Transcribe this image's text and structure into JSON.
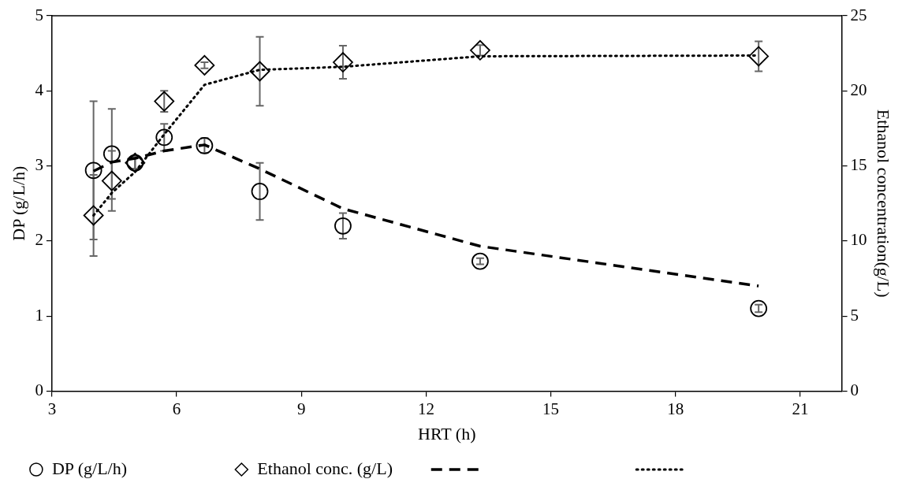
{
  "chart_data": {
    "type": "scatter",
    "xlabel": "HRT (h)",
    "ylabel": "DP (g/L/h)",
    "y2label": "Ethanol concentration(g/L)",
    "xlim": [
      3,
      22
    ],
    "xticks": [
      3,
      6,
      9,
      12,
      15,
      18,
      21
    ],
    "ylim": [
      0,
      5
    ],
    "yticks": [
      0,
      1,
      2,
      3,
      4,
      5
    ],
    "y2lim": [
      0,
      25
    ],
    "y2ticks": [
      0,
      5,
      10,
      15,
      20,
      25
    ],
    "grid": false,
    "legend": "bottom",
    "series": [
      {
        "name": "DP (g/L/h)",
        "type": "scatter",
        "marker": "circle",
        "color": "#000000",
        "x": [
          4,
          4.44,
          5,
          5.7,
          6.67,
          8,
          10,
          13.3,
          20
        ],
        "values": [
          2.94,
          3.16,
          3.04,
          3.38,
          3.27,
          2.66,
          2.2,
          1.73,
          1.1
        ],
        "errors": [
          0.92,
          0.6,
          0.08,
          0.18,
          0.1,
          0.38,
          0.17,
          0.04,
          0.05
        ]
      },
      {
        "name": "Ethanol conc. (g/L)",
        "type": "scatter",
        "marker": "diamond",
        "axis": "y2",
        "color": "#000000",
        "x": [
          4,
          4.44,
          5,
          5.7,
          6.67,
          8,
          10,
          13.3,
          20
        ],
        "values": [
          11.7,
          14.0,
          15.2,
          19.3,
          21.7,
          21.3,
          21.9,
          22.7,
          22.3
        ],
        "errors": [
          2.7,
          2.0,
          0.4,
          0.7,
          0.2,
          2.3,
          1.1,
          0.35,
          1.0
        ]
      },
      {
        "type": "line",
        "line_style": "dashed",
        "marker": "none",
        "color": "#000000",
        "x": [
          4,
          4.44,
          5,
          5.7,
          6.67,
          8,
          10,
          13.3,
          20
        ],
        "values": [
          2.93,
          3.05,
          3.1,
          3.2,
          3.28,
          2.96,
          2.43,
          1.93,
          1.4
        ]
      },
      {
        "type": "line",
        "line_style": "dotted",
        "marker": "none",
        "axis": "y2",
        "color": "#000000",
        "x": [
          4,
          4.44,
          5,
          5.7,
          6.67,
          8,
          10,
          13.3,
          20
        ],
        "values": [
          11.7,
          13.2,
          14.6,
          17.1,
          20.4,
          21.4,
          21.6,
          22.3,
          22.35
        ]
      }
    ]
  }
}
